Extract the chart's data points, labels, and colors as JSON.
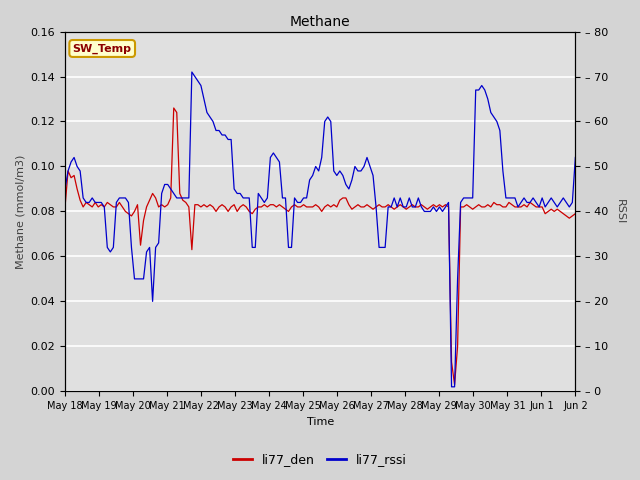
{
  "title": "Methane",
  "xlabel": "Time",
  "ylabel_left": "Methane (mmol/m3)",
  "ylabel_right": "RSSI",
  "ylim_left": [
    0.0,
    0.16
  ],
  "ylim_right": [
    0,
    80
  ],
  "fig_bg_color": "#d4d4d4",
  "plot_bg_color": "#e0e0e0",
  "line_color_red": "#cc0000",
  "line_color_blue": "#0000cc",
  "legend_labels": [
    "li77_den",
    "li77_rssi"
  ],
  "sw_temp_label": "SW_Temp",
  "tick_dates": [
    "May 18",
    "May 19",
    "May 20",
    "May 21",
    "May 22",
    "May 23",
    "May 24",
    "May 25",
    "May 26",
    "May 27",
    "May 28",
    "May 29",
    "May 30",
    "May 31",
    "Jun 1",
    "Jun 2"
  ],
  "red_data": [
    0.082,
    0.098,
    0.095,
    0.096,
    0.09,
    0.085,
    0.082,
    0.084,
    0.083,
    0.082,
    0.084,
    0.082,
    0.083,
    0.082,
    0.084,
    0.083,
    0.082,
    0.082,
    0.084,
    0.082,
    0.08,
    0.079,
    0.078,
    0.08,
    0.083,
    0.065,
    0.076,
    0.082,
    0.085,
    0.088,
    0.086,
    0.082,
    0.083,
    0.082,
    0.083,
    0.086,
    0.126,
    0.124,
    0.088,
    0.085,
    0.084,
    0.082,
    0.063,
    0.083,
    0.083,
    0.082,
    0.083,
    0.082,
    0.083,
    0.082,
    0.08,
    0.082,
    0.083,
    0.082,
    0.08,
    0.082,
    0.083,
    0.08,
    0.082,
    0.083,
    0.082,
    0.08,
    0.079,
    0.081,
    0.082,
    0.082,
    0.083,
    0.082,
    0.083,
    0.083,
    0.082,
    0.083,
    0.082,
    0.081,
    0.08,
    0.082,
    0.083,
    0.082,
    0.082,
    0.083,
    0.082,
    0.082,
    0.082,
    0.083,
    0.082,
    0.08,
    0.082,
    0.083,
    0.082,
    0.083,
    0.082,
    0.085,
    0.086,
    0.086,
    0.083,
    0.081,
    0.082,
    0.083,
    0.082,
    0.082,
    0.083,
    0.082,
    0.081,
    0.082,
    0.083,
    0.082,
    0.082,
    0.083,
    0.082,
    0.081,
    0.082,
    0.083,
    0.082,
    0.081,
    0.082,
    0.083,
    0.082,
    0.082,
    0.083,
    0.082,
    0.081,
    0.082,
    0.083,
    0.082,
    0.083,
    0.082,
    0.083,
    0.082,
    0.013,
    0.003,
    0.02,
    0.082,
    0.082,
    0.083,
    0.082,
    0.081,
    0.082,
    0.083,
    0.082,
    0.082,
    0.083,
    0.082,
    0.084,
    0.083,
    0.083,
    0.082,
    0.082,
    0.084,
    0.083,
    0.082,
    0.082,
    0.082,
    0.083,
    0.082,
    0.084,
    0.083,
    0.082,
    0.082,
    0.082,
    0.079,
    0.08,
    0.081,
    0.08,
    0.081,
    0.08,
    0.079,
    0.078,
    0.077,
    0.078,
    0.079
  ],
  "blue_data_rssi": [
    45,
    49,
    51,
    52,
    50,
    49,
    43,
    42,
    42,
    43,
    42,
    42,
    42,
    41,
    32,
    31,
    32,
    42,
    43,
    43,
    43,
    42,
    32,
    25,
    25,
    25,
    25,
    31,
    32,
    20,
    32,
    33,
    44,
    46,
    46,
    45,
    44,
    43,
    43,
    43,
    43,
    43,
    71,
    70,
    69,
    68,
    65,
    62,
    61,
    60,
    58,
    58,
    57,
    57,
    56,
    56,
    45,
    44,
    44,
    43,
    43,
    43,
    32,
    32,
    44,
    43,
    42,
    43,
    52,
    53,
    52,
    51,
    43,
    43,
    32,
    32,
    43,
    42,
    42,
    43,
    43,
    47,
    48,
    50,
    49,
    52,
    60,
    61,
    60,
    49,
    48,
    49,
    48,
    46,
    45,
    47,
    50,
    49,
    49,
    50,
    52,
    50,
    48,
    41,
    32,
    32,
    32,
    41,
    41,
    43,
    41,
    43,
    41,
    41,
    43,
    41,
    41,
    43,
    41,
    40,
    40,
    40,
    41,
    40,
    41,
    40,
    41,
    42,
    1,
    1,
    25,
    42,
    43,
    43,
    43,
    43,
    67,
    67,
    68,
    67,
    65,
    62,
    61,
    60,
    58,
    49,
    43,
    43,
    43,
    43,
    41,
    42,
    43,
    42,
    42,
    43,
    42,
    41,
    43,
    41,
    42,
    43,
    42,
    41,
    42,
    43,
    42,
    41,
    42,
    52
  ]
}
